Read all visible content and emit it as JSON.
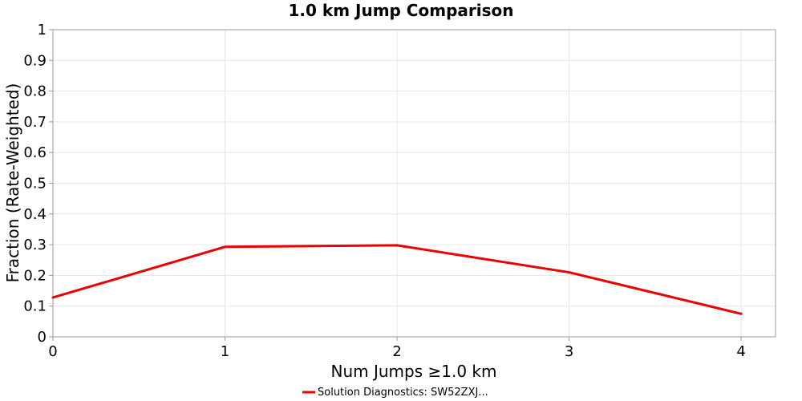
{
  "chart_data": {
    "type": "line",
    "title": "1.0 km Jump Comparison",
    "xlabel": "Num Jumps ≥1.0 km",
    "ylabel": "Fraction (Rate-Weighted)",
    "xlim": [
      0,
      4.2
    ],
    "ylim": [
      0,
      1
    ],
    "x_ticks": [
      0,
      1,
      2,
      3,
      4
    ],
    "y_ticks": [
      0,
      0.1,
      0.2,
      0.3,
      0.4,
      0.5,
      0.6,
      0.7,
      0.8,
      0.9,
      1
    ],
    "x_tick_labels": [
      "0",
      "1",
      "2",
      "3",
      "4"
    ],
    "y_tick_labels": [
      "0",
      "0.1",
      "0.2",
      "0.3",
      "0.4",
      "0.5",
      "0.6",
      "0.7",
      "0.8",
      "0.9",
      "1"
    ],
    "grid": true,
    "legend": "bottom-center",
    "series": [
      {
        "name": "Solution Diagnostics: SW52ZXJ...",
        "color": "#ee0000",
        "x": [
          0,
          1,
          2,
          3,
          4
        ],
        "y": [
          0.128,
          0.293,
          0.298,
          0.21,
          0.075
        ]
      }
    ]
  }
}
